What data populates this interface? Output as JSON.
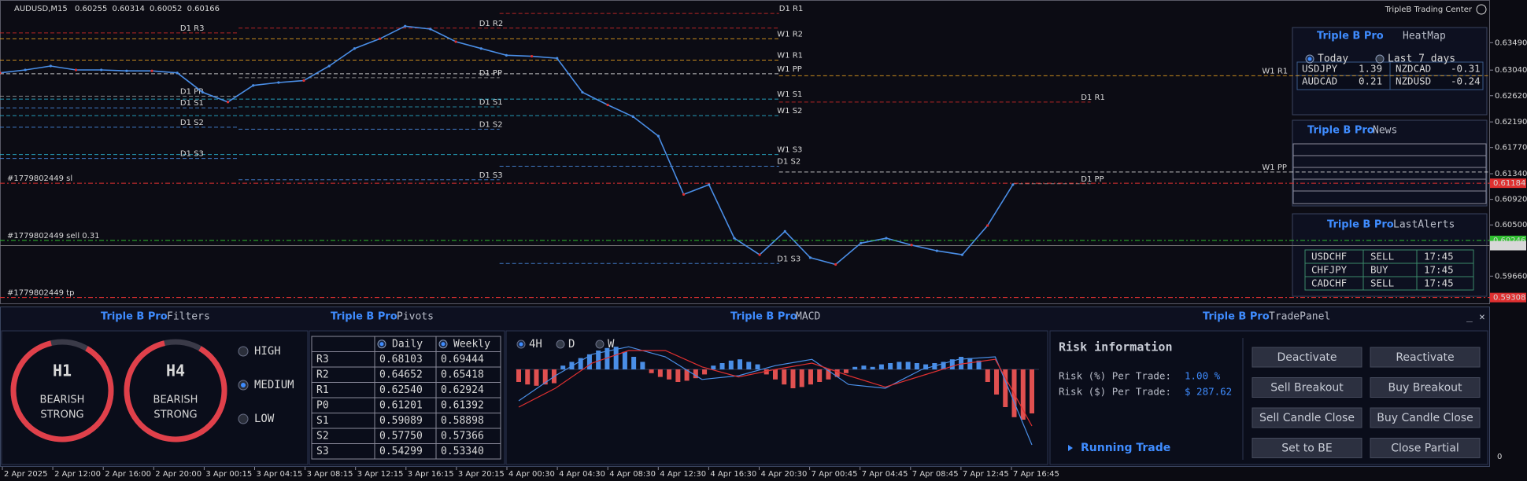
{
  "header": {
    "symbol": "AUDUSD,M15",
    "ohlc": [
      0.60255,
      0.60314,
      0.60052,
      0.60166
    ],
    "brand": "TripleB Trading Center"
  },
  "chart_data": {
    "type": "line",
    "color": "#4a8ee6",
    "values": [
      0.62995,
      0.63043,
      0.63107,
      0.63043,
      0.63043,
      0.63027,
      0.63027,
      0.62995,
      0.62676,
      0.62516,
      0.62788,
      0.62836,
      0.62868,
      0.63107,
      0.63394,
      0.63554,
      0.63761,
      0.63713,
      0.63506,
      0.63394,
      0.63283,
      0.63267,
      0.63235,
      0.62676,
      0.62469,
      0.62277,
      0.61958,
      0.61,
      0.6116,
      0.60282,
      0.60011,
      0.60394,
      0.59963,
      0.59851,
      0.60202,
      0.60282,
      0.6017,
      0.60075,
      0.60011,
      0.6049,
      0.6116
    ],
    "ylim": [
      0.592,
      0.6419
    ],
    "yticks": [
      {
        "value": 0.6349,
        "label": "0.63490"
      },
      {
        "value": 0.6304,
        "label": "0.63040"
      },
      {
        "value": 0.6262,
        "label": "0.62620"
      },
      {
        "value": 0.6219,
        "label": "0.62190"
      },
      {
        "value": 0.6177,
        "label": "0.61770"
      },
      {
        "value": 0.6134,
        "label": "0.61340"
      },
      {
        "value": 0.6092,
        "label": "0.60920"
      },
      {
        "value": 0.605,
        "label": "0.60500"
      },
      {
        "value": 0.5966,
        "label": "0.59660"
      }
    ],
    "x_labels": [
      "2 Apr 2025",
      "2 Apr 12:00",
      "2 Apr 16:00",
      "2 Apr 20:00",
      "3 Apr 00:15",
      "3 Apr 04:15",
      "3 Apr 08:15",
      "3 Apr 12:15",
      "3 Apr 16:15",
      "3 Apr 20:15",
      "4 Apr 00:30",
      "4 Apr 04:30",
      "4 Apr 08:30",
      "4 Apr 12:30",
      "4 Apr 16:30",
      "4 Apr 20:30",
      "7 Apr 00:45",
      "7 Apr 04:45",
      "7 Apr 08:45",
      "7 Apr 12:45",
      "7 Apr 16:45"
    ],
    "levels": [
      {
        "label": "D1 R3",
        "price": 0.6365,
        "color": "#d42a2a"
      },
      {
        "label": "D1 R2",
        "price": 0.63729,
        "color": "#d42a2a"
      },
      {
        "label": "W1 R2",
        "price": 0.63554,
        "color": "#e8a020"
      },
      {
        "label": "D1 R1",
        "price": 0.63969,
        "color": "#d42a2a"
      },
      {
        "label": "W1 R1",
        "price": 0.63203,
        "color": "#e8a020"
      },
      {
        "label": "W1 R1",
        "price": 0.62947,
        "color": "#e8a020"
      },
      {
        "label": "D1 PP",
        "price": 0.62915,
        "color": "#9a9a9a"
      },
      {
        "label": "W1 PP",
        "price": 0.62979,
        "color": "#dddddd"
      },
      {
        "label": "D1 R1",
        "price": 0.62516,
        "color": "#d42a2a"
      },
      {
        "label": "D1 S1",
        "price": 0.62437,
        "color": "#2a9ab4"
      },
      {
        "label": "W1 S1",
        "price": 0.62564,
        "color": "#2ab4d4"
      },
      {
        "label": "W1 S2",
        "price": 0.62293,
        "color": "#2ab4d4"
      },
      {
        "label": "D1 S2",
        "price": 0.6207,
        "color": "#4a8ee6"
      },
      {
        "label": "W1 S3",
        "price": 0.61655,
        "color": "#2ab4d4"
      },
      {
        "label": "D1 S2",
        "price": 0.61463,
        "color": "#4a8ee6"
      },
      {
        "label": "D1 S3",
        "price": 0.6124,
        "color": "#4a8ee6"
      },
      {
        "label": "W1 PP",
        "price": 0.61368,
        "color": "#dddddd"
      },
      {
        "label": "D1 PP",
        "price": 0.61176,
        "color": "#9a9a9a"
      },
      {
        "label": "D1 S3",
        "price": 0.59867,
        "color": "#4a8ee6"
      },
      {
        "label": "D1 PP",
        "price": 0.62612,
        "color": "#9a9a9a"
      },
      {
        "label": "D1 S1",
        "price": 0.62421,
        "color": "#4a8ee6"
      },
      {
        "label": "D1 S2",
        "price": 0.62102,
        "color": "#4a8ee6"
      },
      {
        "label": "D1 S3",
        "price": 0.61591,
        "color": "#4a8ee6"
      }
    ],
    "trades": [
      {
        "label": "#1779802449 sl",
        "price": 0.61184,
        "color": "#e03030"
      },
      {
        "label": "#1779802449 sell 0.31",
        "price": 0.60246,
        "color": "#2fbf2f"
      },
      {
        "label": "#1779802449 tp",
        "price": 0.59308,
        "color": "#e03030"
      }
    ],
    "current_price": {
      "value": 0.6016,
      "label": "0.60160"
    }
  },
  "heatmap": {
    "brand": "Triple B Pro",
    "title": "HeatMap",
    "options": [
      "Today",
      "Last 7 days"
    ],
    "rows": [
      [
        "USDJPY",
        "1.39",
        "NZDCAD",
        "-0.31"
      ],
      [
        "AUDCAD",
        "0.21",
        "NZDUSD",
        "-0.24"
      ]
    ]
  },
  "news": {
    "brand": "Triple B Pro",
    "title": "News"
  },
  "alerts": {
    "brand": "Triple B Pro",
    "title": "LastAlerts",
    "rows": [
      [
        "USDCHF",
        "SELL",
        "17:45"
      ],
      [
        "CHFJPY",
        "BUY",
        "17:45"
      ],
      [
        "CADCHF",
        "SELL",
        "17:45"
      ]
    ]
  },
  "filters": {
    "brand": "Triple B Pro",
    "title": "Filters",
    "gauges": [
      {
        "timeframe": "H1",
        "state": [
          "BEARISH",
          "STRONG"
        ]
      },
      {
        "timeframe": "H4",
        "state": [
          "BEARISH",
          "STRONG"
        ]
      }
    ],
    "levels": [
      "HIGH",
      "MEDIUM",
      "LOW"
    ]
  },
  "pivots": {
    "brand": "Triple B Pro",
    "title": "Pivots",
    "columns": [
      "Daily",
      "Weekly"
    ],
    "rows": [
      {
        "name": "R3",
        "values": [
          "0.68103",
          "0.69444"
        ]
      },
      {
        "name": "R2",
        "values": [
          "0.64652",
          "0.65418"
        ]
      },
      {
        "name": "R1",
        "values": [
          "0.62540",
          "0.62924"
        ]
      },
      {
        "name": "P0",
        "values": [
          "0.61201",
          "0.61392"
        ]
      },
      {
        "name": "S1",
        "values": [
          "0.59089",
          "0.58898"
        ]
      },
      {
        "name": "S2",
        "values": [
          "0.57750",
          "0.57366"
        ]
      },
      {
        "name": "S3",
        "values": [
          "0.54299",
          "0.53340"
        ]
      }
    ]
  },
  "macd": {
    "brand": "Triple B Pro",
    "title": "MACD",
    "tabs": [
      "4H",
      "D",
      "W"
    ],
    "histogram": [
      -10,
      -12,
      -13,
      -12,
      -11,
      3,
      6,
      9,
      12,
      15,
      17,
      18,
      14,
      10,
      6,
      -3,
      -6,
      -8,
      -10,
      -9,
      -7,
      -4,
      3,
      5,
      7,
      8,
      6,
      4,
      -4,
      -8,
      -12,
      -15,
      -14,
      -12,
      -10,
      -8,
      -6,
      -3,
      2,
      3,
      2,
      4,
      5,
      6,
      6,
      5,
      4,
      5,
      6,
      8,
      10,
      9,
      7,
      -10,
      -20,
      -30,
      -38,
      -40,
      -35
    ],
    "macd_line": [
      -25,
      -5,
      12,
      18,
      10,
      -8,
      -5,
      3,
      8,
      -12,
      -15,
      0,
      8,
      10,
      -60
    ],
    "signal_line": [
      -30,
      -15,
      5,
      15,
      15,
      2,
      -6,
      0,
      5,
      -5,
      -14,
      -5,
      4,
      8,
      -45
    ],
    "ylim": [
      -75,
      25
    ],
    "yticks": [
      0
    ]
  },
  "trade_panel": {
    "brand": "Triple B Pro",
    "title": "TradePanel",
    "section": "Risk information",
    "risk_pct_label": "Risk (%) Per Trade:",
    "risk_pct": "1.00 %",
    "risk_usd_label": "Risk ($) Per Trade:",
    "risk_usd": "$ 287.62",
    "running": "Running Trade",
    "buttons": [
      "Deactivate",
      "Reactivate",
      "Sell Breakout",
      "Buy Breakout",
      "Sell Candle Close",
      "Buy Candle Close",
      "Set to BE",
      "Close Partial"
    ],
    "controls": [
      "_",
      "×"
    ]
  }
}
